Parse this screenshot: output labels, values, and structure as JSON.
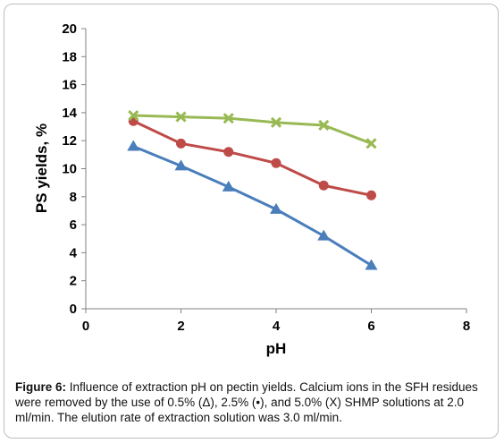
{
  "chart_data": {
    "type": "line",
    "xlabel": "pH",
    "ylabel": "PS yields, %",
    "xlim": [
      0,
      8
    ],
    "ylim": [
      0,
      20
    ],
    "xticks": [
      0,
      2,
      4,
      6,
      8
    ],
    "yticks": [
      0,
      2,
      4,
      6,
      8,
      10,
      12,
      14,
      16,
      18,
      20
    ],
    "grid": false,
    "legend": "none",
    "series": [
      {
        "marker": "triangle",
        "color": "#4a7ebb",
        "x": [
          1,
          2,
          3,
          4,
          5,
          6
        ],
        "y": [
          11.6,
          10.2,
          8.7,
          7.1,
          5.2,
          3.1
        ]
      },
      {
        "marker": "circle",
        "color": "#be4b48",
        "x": [
          1,
          2,
          3,
          4,
          5,
          6
        ],
        "y": [
          13.4,
          11.8,
          11.2,
          10.4,
          8.8,
          8.1
        ]
      },
      {
        "marker": "x",
        "color": "#98b954",
        "x": [
          1,
          2,
          3,
          4,
          5,
          6
        ],
        "y": [
          13.8,
          13.7,
          13.6,
          13.3,
          13.1,
          11.8
        ]
      }
    ]
  },
  "caption": {
    "label": "Figure 6:",
    "text": " Influence of extraction pH on pectin yields. Calcium ions in the SFH residues were removed by the use of 0.5% (Δ), 2.5% (•), and 5.0% (X) SHMP solutions at 2.0 ml/min. The elution rate of extraction solution was 3.0 ml/min."
  }
}
